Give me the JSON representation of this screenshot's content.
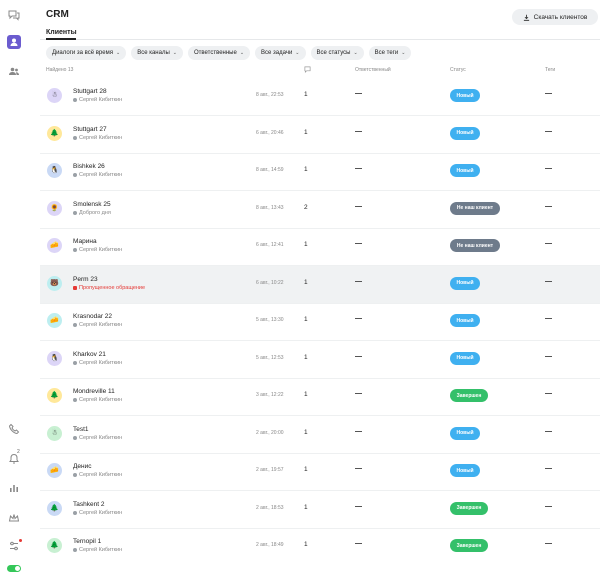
{
  "header": {
    "title": "CRM",
    "download_label": "Скачать клиентов"
  },
  "tab": {
    "label": "Клиенты"
  },
  "filters": [
    "Диалоги за всё время",
    "Все каналы",
    "Ответственные",
    "Все задачи",
    "Все статусы",
    "Все теги"
  ],
  "table": {
    "found_label": "Найдено 13",
    "col_responsible": "Ответственный",
    "col_status": "Статус",
    "col_tags": "Теги"
  },
  "colors": {
    "new": "#3fb0f0",
    "not_client": "#6e7b8b",
    "done": "#34c06a"
  },
  "rows": [
    {
      "name": "Stuttgart 28",
      "sub": "Сергей Кибиткин",
      "date": "8 авг., 22:53",
      "count": "1",
      "status": "Новый",
      "status_kind": "new",
      "avatar_bg": "#dcd5f7",
      "avatar": "☃"
    },
    {
      "name": "Stuttgart 27",
      "sub": "Сергей Кибиткин",
      "date": "6 авг., 20:46",
      "count": "1",
      "status": "Новый",
      "status_kind": "new",
      "avatar_bg": "#ffe89a",
      "avatar": "🌲"
    },
    {
      "name": "Bishkek 26",
      "sub": "Сергей Кибиткин",
      "date": "8 авг., 14:59",
      "count": "1",
      "status": "Новый",
      "status_kind": "new",
      "avatar_bg": "#c9d9f5",
      "avatar": "🐧"
    },
    {
      "name": "Smolensk 25",
      "sub": "Доброго дня",
      "date": "8 авг., 13:43",
      "count": "2",
      "status": "Не наш клиент",
      "status_kind": "not_client",
      "avatar_bg": "#dcd5f7",
      "avatar": "🌻"
    },
    {
      "name": "Марина",
      "sub": "Сергей Кибиткин",
      "date": "6 авг., 12:41",
      "count": "1",
      "status": "Не наш клиент",
      "status_kind": "not_client",
      "avatar_bg": "#dcd5f7",
      "avatar": "🧀"
    },
    {
      "name": "Perm 23",
      "sub": "Пропущенное обращение",
      "date": "6 авг., 10:22",
      "count": "1",
      "status": "Новый",
      "status_kind": "new",
      "avatar_bg": "#bdeef0",
      "avatar": "🐻",
      "missed": true
    },
    {
      "name": "Krasnodar 22",
      "sub": "Сергей Кибиткин",
      "date": "5 авг., 13:30",
      "count": "1",
      "status": "Новый",
      "status_kind": "new",
      "avatar_bg": "#bdeef0",
      "avatar": "🧀"
    },
    {
      "name": "Kharkov 21",
      "sub": "Сергей Кибиткин",
      "date": "5 авг., 12:53",
      "count": "1",
      "status": "Новый",
      "status_kind": "new",
      "avatar_bg": "#dcd5f7",
      "avatar": "🐧"
    },
    {
      "name": "Mondreville 11",
      "sub": "Сергей Кибиткин",
      "date": "3 авг., 12:22",
      "count": "1",
      "status": "Завершен",
      "status_kind": "done",
      "avatar_bg": "#ffe89a",
      "avatar": "🌲"
    },
    {
      "name": "Test1",
      "sub": "Сергей Кибиткин",
      "date": "2 авг., 20:00",
      "count": "1",
      "status": "Новый",
      "status_kind": "new",
      "avatar_bg": "#c8f0d2",
      "avatar": "☃"
    },
    {
      "name": "Денис",
      "sub": "Сергей Кибиткин",
      "date": "2 авг., 19:57",
      "count": "1",
      "status": "Новый",
      "status_kind": "new",
      "avatar_bg": "#c9d9f5",
      "avatar": "🧀"
    },
    {
      "name": "Tashkent 2",
      "sub": "Сергей Кибиткин",
      "date": "2 авг., 18:53",
      "count": "1",
      "status": "Завершен",
      "status_kind": "done",
      "avatar_bg": "#c9d9f5",
      "avatar": "🌲"
    },
    {
      "name": "Ternopil 1",
      "sub": "Сергей Кибиткин",
      "date": "2 авг., 18:49",
      "count": "1",
      "status": "Завершен",
      "status_kind": "done",
      "avatar_bg": "#c8f0d2",
      "avatar": "🌲"
    }
  ],
  "rail": {
    "badge": "2"
  }
}
